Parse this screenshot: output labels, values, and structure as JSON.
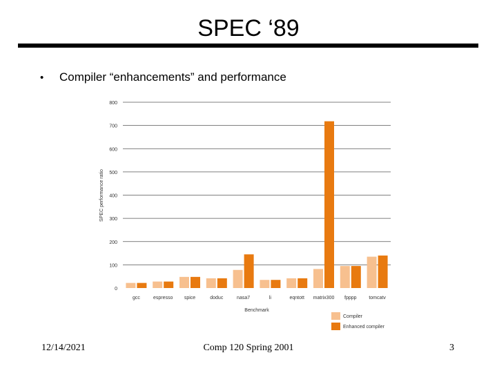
{
  "slide": {
    "title": "SPEC ‘89",
    "bullet_marker": "•",
    "bullet_text": "Compiler “enhancements” and performance"
  },
  "footer": {
    "date": "12/14/2021",
    "course": "Comp 120 Spring 2001",
    "page": "3"
  },
  "chart_data": {
    "type": "bar",
    "categories": [
      "gcc",
      "espresso",
      "spice",
      "doduc",
      "nasa7",
      "li",
      "eqntott",
      "matrix300",
      "fpppp",
      "tomcatv"
    ],
    "series": [
      {
        "name": "Compiler",
        "color": "#f7c08f",
        "values": [
          22,
          28,
          48,
          42,
          78,
          35,
          42,
          82,
          95,
          135
        ]
      },
      {
        "name": "Enhanced compiler",
        "color": "#e87a10",
        "values": [
          22,
          28,
          48,
          42,
          145,
          35,
          42,
          718,
          95,
          140
        ]
      }
    ],
    "yticks": [
      "0",
      "100",
      "200",
      "300",
      "400",
      "500",
      "600",
      "700",
      "800"
    ],
    "ylim": [
      0,
      800
    ],
    "xlabel": "Benchmark",
    "ylabel": "SPEC performance ratio",
    "grid": true,
    "legend": "bottom-right"
  }
}
